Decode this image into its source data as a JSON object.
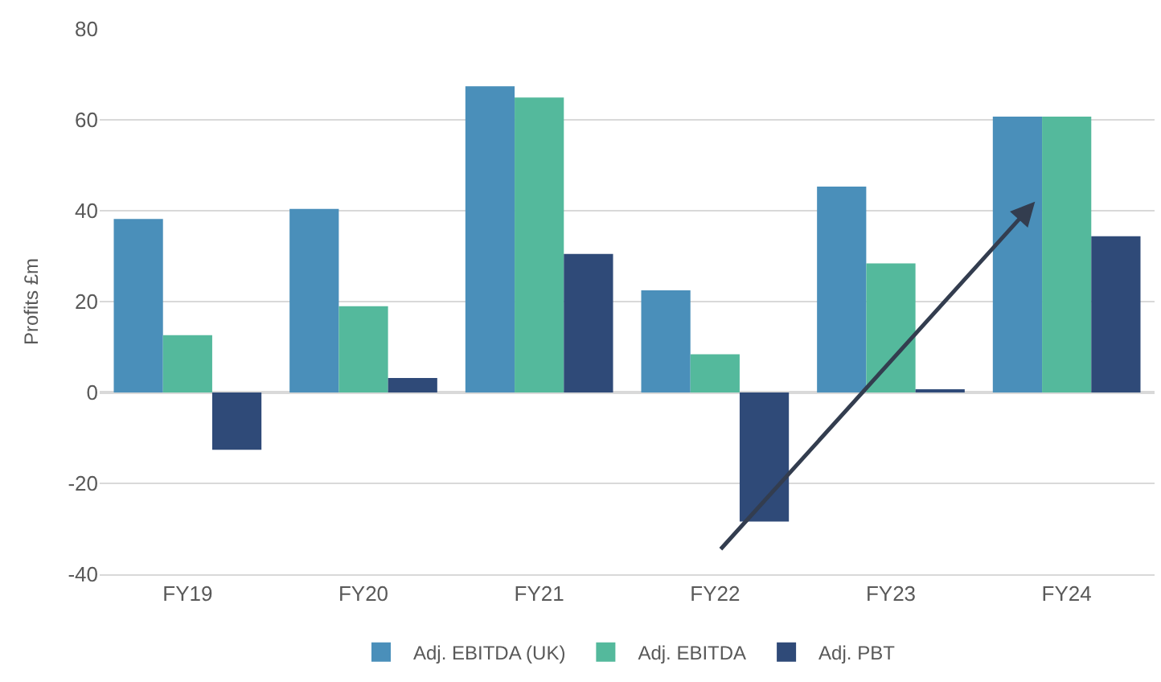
{
  "chart_data": {
    "type": "bar",
    "ylabel": "Profits £m",
    "categories": [
      "FY19",
      "FY20",
      "FY21",
      "FY22",
      "FY23",
      "FY24"
    ],
    "series": [
      {
        "name": "Adj. EBITDA (UK)",
        "color": "#4a8fba",
        "values": [
          38.2,
          40.4,
          67.4,
          22.5,
          45.3,
          60.7
        ]
      },
      {
        "name": "Adj. EBITDA",
        "color": "#54b99c",
        "values": [
          12.6,
          19,
          64.9,
          8.4,
          28.4,
          60.7
        ]
      },
      {
        "name": "Adj. PBT",
        "color": "#2f4a78",
        "values": [
          -12.6,
          3.2,
          30.5,
          -28.4,
          0.7,
          34.4
        ]
      }
    ],
    "ylim": [
      -40,
      80
    ],
    "yticks": [
      -40,
      -20,
      0,
      20,
      40,
      60,
      80
    ],
    "grid": "y",
    "legend": "bottom"
  }
}
